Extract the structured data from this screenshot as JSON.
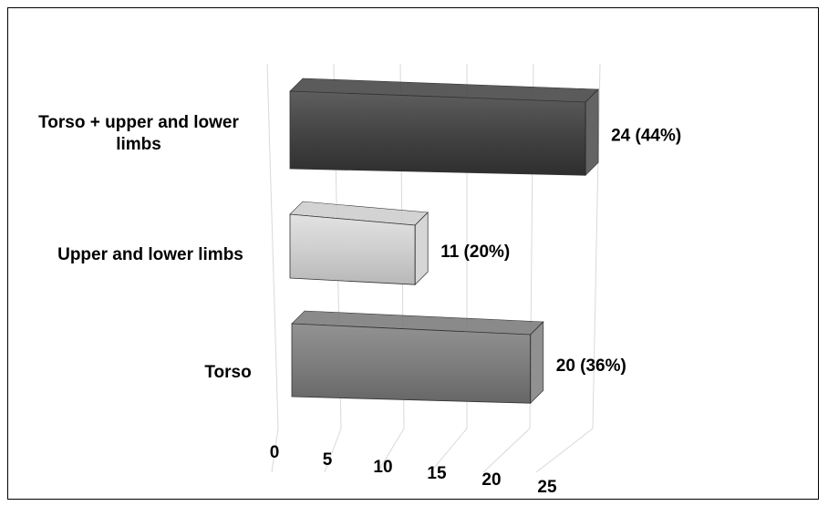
{
  "chart_data": {
    "type": "bar",
    "orientation": "horizontal",
    "style": "3d",
    "categories": [
      "Torso + upper and lower limbs",
      "Upper and lower limbs",
      "Torso"
    ],
    "category_lines": [
      [
        "Torso + upper and lower",
        "limbs"
      ],
      [
        "Upper and lower limbs"
      ],
      [
        "Torso"
      ]
    ],
    "values": [
      24,
      11,
      20
    ],
    "value_labels": [
      "24 (44%)",
      "11 (20%)",
      "20 (36%)"
    ],
    "colors": [
      "#4a4a4a",
      "#cfcfcf",
      "#7e7e7e"
    ],
    "xlim": [
      0,
      25
    ],
    "x_ticks": [
      "0",
      "5",
      "10",
      "15",
      "20",
      "25"
    ],
    "grid": true,
    "title": "",
    "xlabel": "",
    "ylabel": ""
  }
}
